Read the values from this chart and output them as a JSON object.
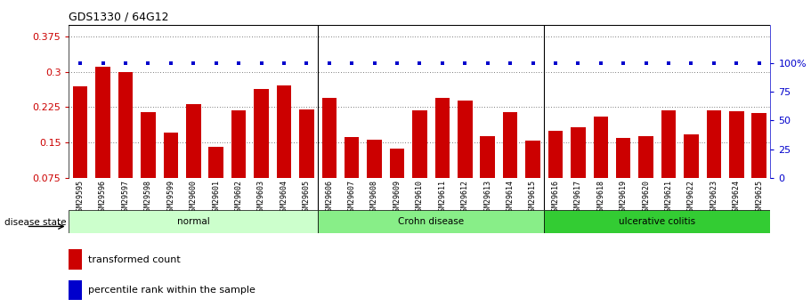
{
  "title": "GDS1330 / 64G12",
  "samples": [
    "GSM29595",
    "GSM29596",
    "GSM29597",
    "GSM29598",
    "GSM29599",
    "GSM29600",
    "GSM29601",
    "GSM29602",
    "GSM29603",
    "GSM29604",
    "GSM29605",
    "GSM29606",
    "GSM29607",
    "GSM29608",
    "GSM29609",
    "GSM29610",
    "GSM29611",
    "GSM29612",
    "GSM29613",
    "GSM29614",
    "GSM29615",
    "GSM29616",
    "GSM29617",
    "GSM29618",
    "GSM29619",
    "GSM29620",
    "GSM29621",
    "GSM29622",
    "GSM29623",
    "GSM29624",
    "GSM29625"
  ],
  "bar_values": [
    0.27,
    0.31,
    0.3,
    0.215,
    0.172,
    0.232,
    0.142,
    0.218,
    0.264,
    0.272,
    0.22,
    0.245,
    0.162,
    0.157,
    0.138,
    0.219,
    0.245,
    0.24,
    0.164,
    0.215,
    0.155,
    0.175,
    0.182,
    0.205,
    0.16,
    0.163,
    0.218,
    0.167,
    0.218,
    0.217,
    0.213
  ],
  "bar_color": "#CC0000",
  "percentile_color": "#0000CC",
  "ylim_left": [
    0.075,
    0.4
  ],
  "ylim_right": [
    0,
    133.33
  ],
  "yticks_left": [
    0.075,
    0.15,
    0.225,
    0.3,
    0.375
  ],
  "yticks_right": [
    0,
    25,
    50,
    75,
    100
  ],
  "groups": [
    {
      "label": "normal",
      "start": 0,
      "end": 10,
      "color": "#ccffcc"
    },
    {
      "label": "Crohn disease",
      "start": 11,
      "end": 20,
      "color": "#88ee88"
    },
    {
      "label": "ulcerative colitis",
      "start": 21,
      "end": 30,
      "color": "#33cc33"
    }
  ],
  "disease_state_label": "disease state",
  "legend_bar_label": "transformed count",
  "legend_percentile_label": "percentile rank within the sample"
}
